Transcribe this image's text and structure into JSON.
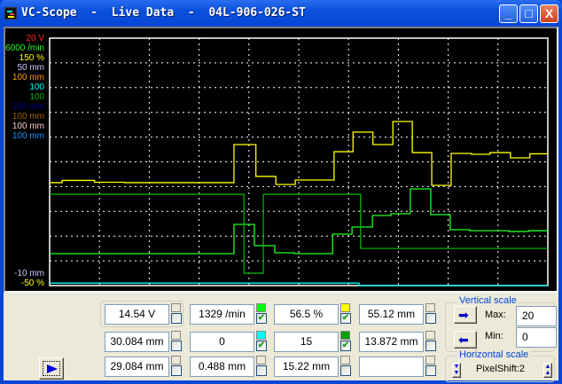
{
  "window": {
    "title": "VC-Scope  -  Live Data  -  04L-906-026-ST",
    "minimize": "_",
    "maximize": "□",
    "close": "X"
  },
  "scale_labels": {
    "top": [
      {
        "text": "20 V",
        "color": "#ff2020"
      },
      {
        "text": "6000 /min",
        "color": "#20ff20"
      },
      {
        "text": "150 %",
        "color": "#ffff00"
      },
      {
        "text": "50 mm",
        "color": "#c8c8ff"
      },
      {
        "text": "100 mm",
        "color": "#ff9a00"
      },
      {
        "text": "100",
        "color": "#00ffff"
      },
      {
        "text": "100",
        "color": "#00b000"
      },
      {
        "text": "100 mm",
        "color": "#000090"
      },
      {
        "text": "100 mm",
        "color": "#a06000"
      },
      {
        "text": "100 mm",
        "color": "#ffc8c8"
      },
      {
        "text": "100 mm",
        "color": "#1090ff"
      }
    ],
    "bottom": [
      {
        "text": "-10 mm",
        "color": "#c8c8ff"
      },
      {
        "text": "-50 %",
        "color": "#ffff00"
      }
    ]
  },
  "chart_data": {
    "type": "line",
    "grid": true,
    "x_divisions": 10,
    "y_divisions": 10,
    "series": [
      {
        "color": "#ffff00",
        "ylim": [
          -50,
          150
        ],
        "points": [
          [
            0,
            33.2
          ],
          [
            0.25,
            35
          ],
          [
            0.9,
            33.5
          ],
          [
            1.5,
            33.2
          ],
          [
            3.7,
            64
          ],
          [
            4.14,
            38.2
          ],
          [
            4.54,
            31.7
          ],
          [
            4.93,
            35.3
          ],
          [
            5.71,
            58.2
          ],
          [
            6.09,
            74
          ],
          [
            6.49,
            64
          ],
          [
            6.89,
            82.6
          ],
          [
            7.28,
            57.5
          ],
          [
            7.67,
            31
          ],
          [
            8.06,
            56.8
          ],
          [
            8.47,
            56.1
          ],
          [
            8.84,
            57.5
          ],
          [
            9.25,
            53.2
          ],
          [
            9.64,
            56.5
          ],
          [
            10,
            56.5
          ]
        ]
      },
      {
        "color": "#20ff20",
        "ylim": [
          0,
          6000
        ],
        "points": [
          [
            0,
            774
          ],
          [
            3.7,
            1484
          ],
          [
            4.11,
            968
          ],
          [
            4.52,
            796
          ],
          [
            4.91,
            774
          ],
          [
            5.68,
            1247
          ],
          [
            6.07,
            1419
          ],
          [
            6.48,
            1699
          ],
          [
            6.85,
            1742
          ],
          [
            7.24,
            2344
          ],
          [
            7.65,
            1720
          ],
          [
            8.04,
            1355
          ],
          [
            8.43,
            1330
          ],
          [
            9.22,
            1310
          ],
          [
            9.61,
            1329
          ],
          [
            10,
            1329
          ]
        ]
      },
      {
        "color": "#00b000",
        "ylim": [
          0,
          100
        ],
        "points": [
          [
            0,
            36.9
          ],
          [
            3.9,
            5
          ],
          [
            4.29,
            36.9
          ],
          [
            6.24,
            15
          ],
          [
            10,
            15
          ]
        ]
      },
      {
        "color": "#00ffff",
        "ylim": [
          0,
          100
        ],
        "points": [
          [
            0,
            1
          ],
          [
            6.21,
            0
          ],
          [
            10,
            0
          ]
        ]
      }
    ]
  },
  "values": [
    [
      {
        "text": "14.54 V",
        "color": null,
        "checked": false
      },
      {
        "text": "1329 /min",
        "color": "#00ff00",
        "checked": true
      },
      {
        "text": "56.5 %",
        "color": "#ffff00",
        "checked": true
      },
      {
        "text": "55.12 mm",
        "color": null,
        "checked": false
      }
    ],
    [
      {
        "text": "30.084 mm",
        "color": null,
        "checked": false
      },
      {
        "text": "0",
        "color": "#00ffff",
        "checked": true
      },
      {
        "text": "15",
        "color": "#00a000",
        "checked": true
      },
      {
        "text": "13.872 mm",
        "color": null,
        "checked": false
      }
    ],
    [
      {
        "text": "29.084 mm",
        "color": null,
        "checked": false
      },
      {
        "text": "0.488 mm",
        "color": null,
        "checked": false
      },
      {
        "text": "15.22 mm",
        "color": null,
        "checked": false
      },
      {
        "text": "",
        "color": null,
        "checked": false
      }
    ]
  ],
  "vertical_scale": {
    "title": "Vertical scale",
    "max_label": "Max:",
    "max_value": "20",
    "min_label": "Min:",
    "min_value": "0"
  },
  "horizontal_scale": {
    "title": "Horizontal scale",
    "value": "PixelShift:2"
  },
  "check_mark": "✔"
}
